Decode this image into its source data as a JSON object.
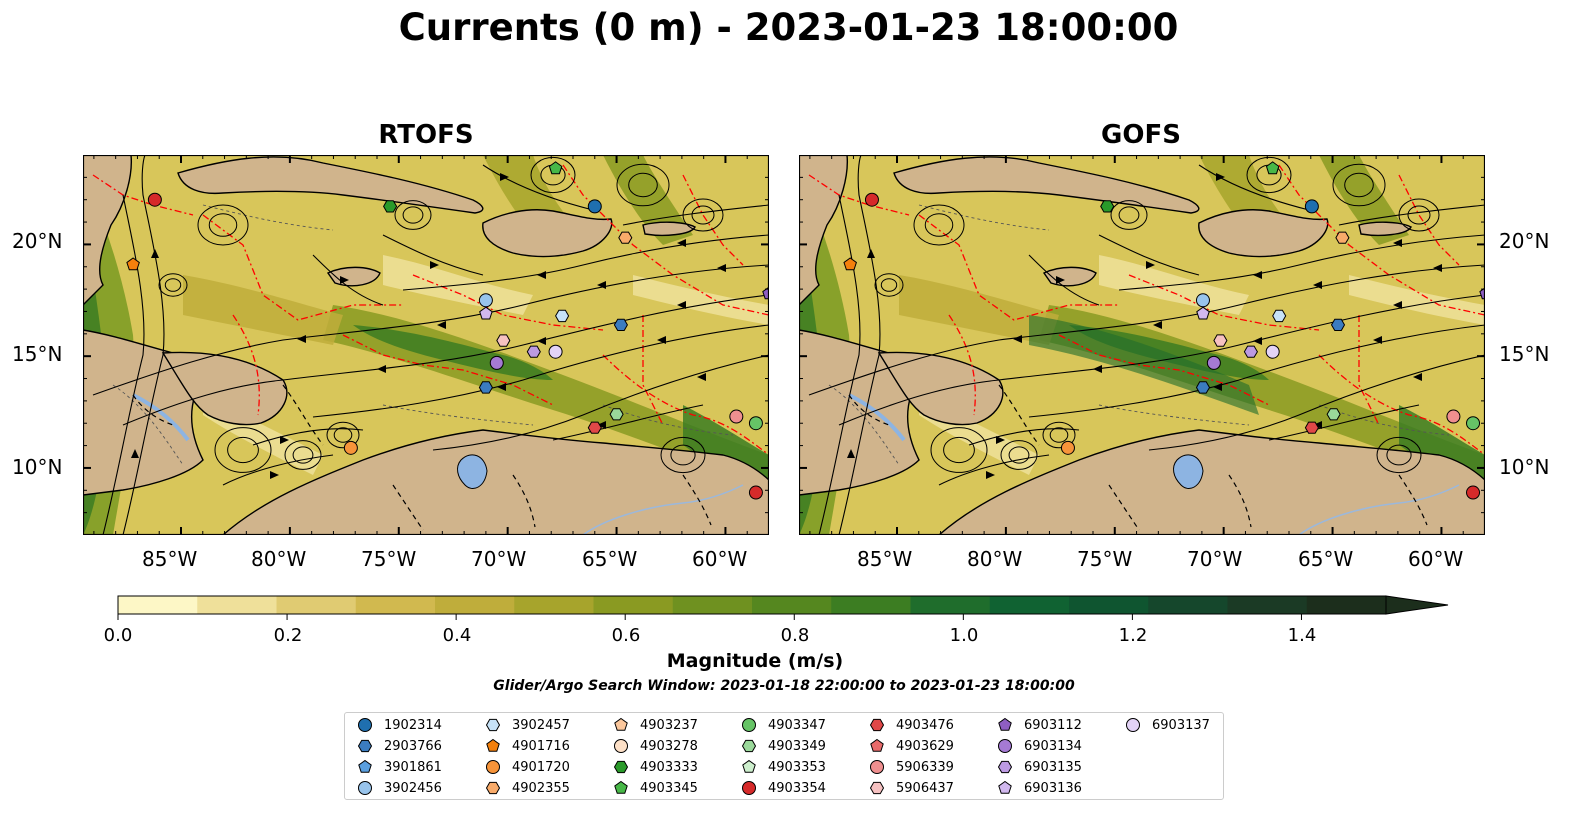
{
  "title": "Currents (0 m) - 2023-01-23 18:00:00",
  "panels": [
    {
      "title": "RTOFS"
    },
    {
      "title": "GOFS"
    }
  ],
  "axes": {
    "x_ticks": [
      "85°W",
      "80°W",
      "75°W",
      "70°W",
      "65°W",
      "60°W"
    ],
    "y_ticks": [
      "20°N",
      "15°N",
      "10°N"
    ],
    "lon_range": [
      -89.5,
      -58.0
    ],
    "lat_range": [
      7.0,
      24.0
    ]
  },
  "colorbar": {
    "label": "Magnitude (m/s)",
    "ticks": [
      "0.0",
      "0.2",
      "0.4",
      "0.6",
      "0.8",
      "1.0",
      "1.2",
      "1.4"
    ],
    "range": [
      0.0,
      1.5
    ],
    "extend": "max",
    "colors": [
      "#fdf7c6",
      "#efe09a",
      "#e0cb72",
      "#d1b94f",
      "#bfad3b",
      "#a7a42c",
      "#8a9a22",
      "#6f9120",
      "#55871f",
      "#3c7d22",
      "#1f6d2c",
      "#106232",
      "#0f5530",
      "#15472c",
      "#1b3a25",
      "#1c2e1c"
    ]
  },
  "search_window": "Glider/Argo Search Window: 2023-01-18 22:00:00 to 2023-01-23 18:00:00",
  "legend": [
    {
      "id": "1902314",
      "marker": "circle",
      "color": "#1f6faf"
    },
    {
      "id": "2903766",
      "marker": "hexagon",
      "color": "#3b7cc0"
    },
    {
      "id": "3901861",
      "marker": "pentagon",
      "color": "#5a9fdf"
    },
    {
      "id": "3902456",
      "marker": "circle",
      "color": "#98c4ec"
    },
    {
      "id": "3902457",
      "marker": "hexagon",
      "color": "#c7e2f7"
    },
    {
      "id": "4901716",
      "marker": "pentagon",
      "color": "#f4800c"
    },
    {
      "id": "4901720",
      "marker": "circle",
      "color": "#f7943a"
    },
    {
      "id": "4902355",
      "marker": "hexagon",
      "color": "#f9ab6a"
    },
    {
      "id": "4903237",
      "marker": "pentagon",
      "color": "#fbc79c"
    },
    {
      "id": "4903278",
      "marker": "circle",
      "color": "#fde0c7"
    },
    {
      "id": "4903333",
      "marker": "hexagon",
      "color": "#2a9a2a"
    },
    {
      "id": "4903345",
      "marker": "pentagon",
      "color": "#48b848"
    },
    {
      "id": "4903347",
      "marker": "circle",
      "color": "#66c466"
    },
    {
      "id": "4903349",
      "marker": "hexagon",
      "color": "#9ad89a"
    },
    {
      "id": "4903353",
      "marker": "pentagon",
      "color": "#cdefcd"
    },
    {
      "id": "4903354",
      "marker": "circle",
      "color": "#d62a2a"
    },
    {
      "id": "4903476",
      "marker": "hexagon",
      "color": "#e04848"
    },
    {
      "id": "4903629",
      "marker": "pentagon",
      "color": "#e86b6b"
    },
    {
      "id": "5906339",
      "marker": "circle",
      "color": "#ef8f8f"
    },
    {
      "id": "5906437",
      "marker": "hexagon",
      "color": "#f6c1c1"
    },
    {
      "id": "6903112",
      "marker": "pentagon",
      "color": "#8e5ec2"
    },
    {
      "id": "6903134",
      "marker": "circle",
      "color": "#a57ad4"
    },
    {
      "id": "6903135",
      "marker": "hexagon",
      "color": "#bc9ae2"
    },
    {
      "id": "6903136",
      "marker": "pentagon",
      "color": "#d1b8ee"
    },
    {
      "id": "6903137",
      "marker": "circle",
      "color": "#e3d3f6"
    }
  ],
  "floats": [
    {
      "id": "4903354",
      "lon": -86.2,
      "lat": 22.0
    },
    {
      "id": "4901716",
      "lon": -87.2,
      "lat": 19.1
    },
    {
      "id": "4903345",
      "lon": -67.8,
      "lat": 23.4
    },
    {
      "id": "4903333",
      "lon": -75.4,
      "lat": 21.7
    },
    {
      "id": "1902314",
      "lon": -66.0,
      "lat": 21.7
    },
    {
      "id": "4902355",
      "lon": -64.6,
      "lat": 20.3
    },
    {
      "id": "3902456",
      "lon": -71.0,
      "lat": 17.5
    },
    {
      "id": "6903136",
      "lon": -71.0,
      "lat": 16.9
    },
    {
      "id": "3902457",
      "lon": -67.5,
      "lat": 16.8
    },
    {
      "id": "2903766",
      "lon": -64.8,
      "lat": 16.4
    },
    {
      "id": "6903134",
      "lon": -70.5,
      "lat": 14.7
    },
    {
      "id": "5906437",
      "lon": -70.2,
      "lat": 15.7
    },
    {
      "id": "6903135",
      "lon": -68.8,
      "lat": 15.2
    },
    {
      "id": "6903137",
      "lon": -67.8,
      "lat": 15.2
    },
    {
      "id": "2903766",
      "lon": -71.0,
      "lat": 13.6
    },
    {
      "id": "4903349",
      "lon": -65.0,
      "lat": 12.4
    },
    {
      "id": "4903476",
      "lon": -66.0,
      "lat": 11.8
    },
    {
      "id": "4901720",
      "lon": -77.2,
      "lat": 10.9
    },
    {
      "id": "5906339",
      "lon": -59.5,
      "lat": 12.3
    },
    {
      "id": "4903347",
      "lon": -58.6,
      "lat": 12.0
    },
    {
      "id": "4903354",
      "lon": -58.6,
      "lat": 8.9
    },
    {
      "id": "6903112",
      "lon": -58.0,
      "lat": 17.8
    }
  ]
}
